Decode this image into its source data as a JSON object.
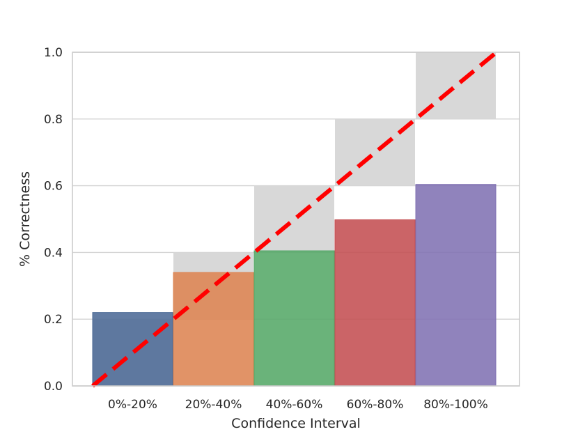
{
  "chart_data": {
    "type": "bar",
    "title": "",
    "xlabel": "Confidence Interval",
    "ylabel": "% Correctness",
    "categories": [
      "0%-20%",
      "20%-40%",
      "40%-60%",
      "60%-80%",
      "80%-100%"
    ],
    "series": [
      {
        "role": "gap",
        "color": "#d8d8d8",
        "lower": [
          0.0,
          0.2,
          0.4,
          0.6,
          0.8
        ],
        "upper": [
          0.2,
          0.4,
          0.6,
          0.8,
          1.0
        ]
      },
      {
        "role": "accuracy",
        "values": [
          0.22,
          0.34,
          0.405,
          0.498,
          0.604
        ],
        "colors": [
          "#4c6a96",
          "#dd8452",
          "#55a868",
          "#c44e52",
          "#8172b3"
        ]
      }
    ],
    "reference_line": {
      "style": "dashed",
      "color": "#ff0000",
      "from": [
        0,
        0.0
      ],
      "to": [
        5,
        1.0
      ]
    },
    "ylim": [
      0.0,
      1.0
    ],
    "yticks": [
      "0.0",
      "0.2",
      "0.4",
      "0.6",
      "0.8",
      "1.0"
    ],
    "grid": true,
    "legend": "none"
  }
}
